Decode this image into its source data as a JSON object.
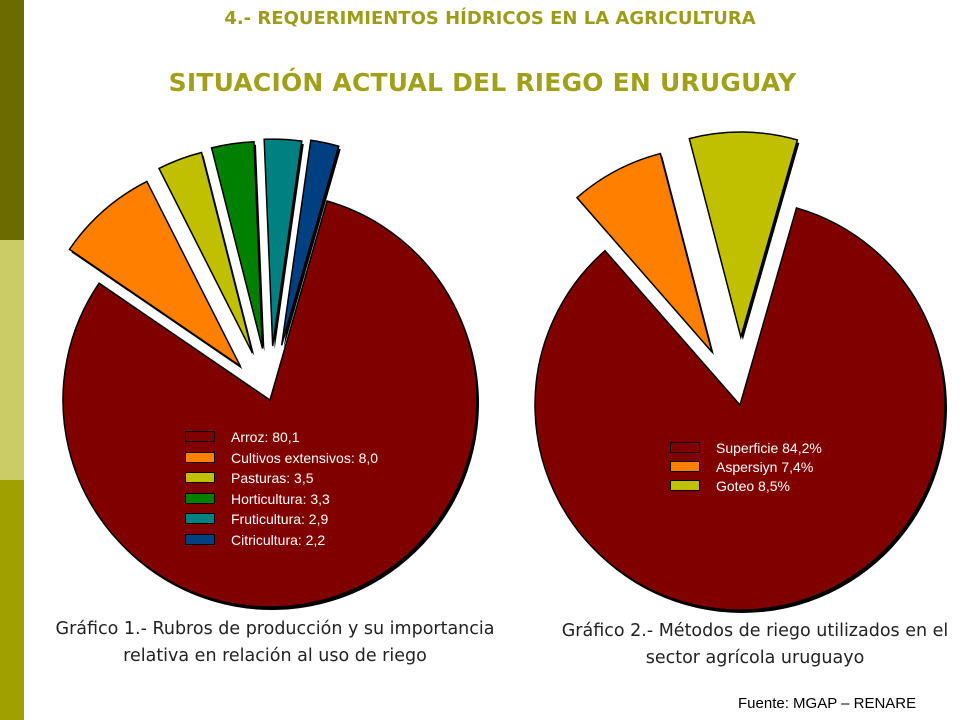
{
  "supertitle": "4.- REQUERIMIENTOS HÍDRICOS EN LA AGRICULTURA",
  "title": "SITUACIÓN ACTUAL DEL RIEGO EN URUGUAY",
  "chart_data": [
    {
      "type": "pie",
      "slices": [
        {
          "label": "Arroz",
          "legend": "Arroz: 80,1",
          "value": 80.1,
          "color": "#800000"
        },
        {
          "label": "Cultivos extensivos",
          "legend": "Cultivos extensivos: 8,0",
          "value": 8.0,
          "color": "#ff8000"
        },
        {
          "label": "Pasturas",
          "legend": "Pasturas: 3,5",
          "value": 3.5,
          "color": "#c0c000"
        },
        {
          "label": "Horticultura",
          "legend": "Horticultura: 3,3",
          "value": 3.3,
          "color": "#008000"
        },
        {
          "label": "Fruticultura",
          "legend": "Fruticultura: 2,9",
          "value": 2.9,
          "color": "#008080"
        },
        {
          "label": "Citricultura",
          "legend": "Citricultura: 2,2",
          "value": 2.2,
          "color": "#004080"
        }
      ],
      "legend_position": "inside-pie",
      "caption": "Gráfico 1.- Rubros de producción y su importancia relativa en relación al uso de riego"
    },
    {
      "type": "pie",
      "slices": [
        {
          "label": "Superficie",
          "legend": "Superficie 84,2%",
          "value": 84.2,
          "color": "#800000"
        },
        {
          "label": "Aspersiyn",
          "legend": "Aspersiyn 7,4%",
          "value": 7.4,
          "color": "#ff8000"
        },
        {
          "label": "Goteo",
          "legend": "Goteo 8,5%",
          "value": 8.5,
          "color": "#c0c000"
        }
      ],
      "legend_position": "inside-pie",
      "caption": "Gráfico 2.- Métodos de riego utilizados en el sector agrícola uruguayo"
    }
  ],
  "source": "Fuente: MGAP – RENARE",
  "colors": {
    "sidebar_top": "#6b6b00",
    "sidebar_mid": "#cccc66",
    "sidebar_bottom": "#a0a000",
    "title": "#a0a01a"
  }
}
